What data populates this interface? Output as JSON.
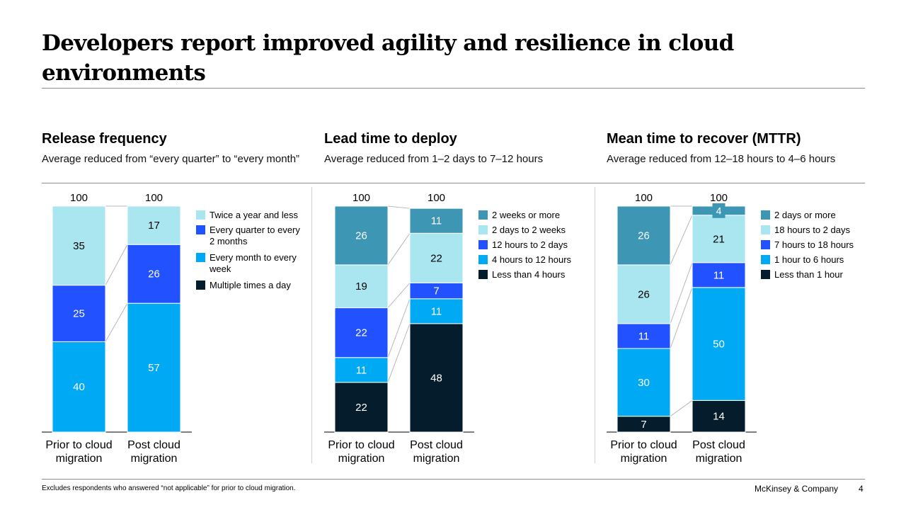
{
  "title": "Developers report improved agility and resilience in cloud environments",
  "footnote": "Excludes respondents who answered “not applicable” for prior to cloud migration.",
  "brand": "McKinsey & Company",
  "page_number": "4",
  "colors": {
    "darkest": "#051c2c",
    "bright_blue": "#00a9f4",
    "royal_blue": "#2251ff",
    "light_cyan": "#aae6f0",
    "teal": "#3c96b4"
  },
  "chart_data": [
    {
      "type": "bar",
      "stacked": true,
      "title": "Release frequency",
      "subtitle": "Average reduced from “every quarter” to “every month”",
      "categories": [
        "Prior to cloud migration",
        "Post cloud migration"
      ],
      "totals": [
        100,
        100
      ],
      "ylim": [
        0,
        100
      ],
      "legend_position": "right",
      "series": [
        {
          "name": "Multiple times a day",
          "color": "#051c2c",
          "values": [
            0,
            0
          ]
        },
        {
          "name": "Every month to every week",
          "color": "#00a9f4",
          "values": [
            40,
            57
          ]
        },
        {
          "name": "Every quarter to every 2 months",
          "color": "#2251ff",
          "values": [
            25,
            26
          ]
        },
        {
          "name": "Twice a year and less",
          "color": "#aae6f0",
          "values": [
            35,
            17
          ]
        }
      ]
    },
    {
      "type": "bar",
      "stacked": true,
      "title": "Lead time to deploy",
      "subtitle": "Average reduced from 1–2 days to 7–12 hours",
      "categories": [
        "Prior to cloud migration",
        "Post cloud migration"
      ],
      "totals": [
        100,
        100
      ],
      "ylim": [
        0,
        100
      ],
      "legend_position": "right",
      "series": [
        {
          "name": "Less than 4 hours",
          "color": "#051c2c",
          "values": [
            22,
            48
          ]
        },
        {
          "name": "4 hours to 12 hours",
          "color": "#00a9f4",
          "values": [
            11,
            11
          ]
        },
        {
          "name": "12 hours to 2 days",
          "color": "#2251ff",
          "values": [
            22,
            7
          ]
        },
        {
          "name": "2 days to 2 weeks",
          "color": "#aae6f0",
          "values": [
            19,
            22
          ]
        },
        {
          "name": "2 weeks or more",
          "color": "#3c96b4",
          "values": [
            26,
            11
          ]
        }
      ]
    },
    {
      "type": "bar",
      "stacked": true,
      "title": "Mean time to recover (MTTR)",
      "subtitle": "Average reduced from 12–18 hours to 4–6 hours",
      "categories": [
        "Prior to cloud migration",
        "Post cloud migration"
      ],
      "totals": [
        100,
        100
      ],
      "ylim": [
        0,
        100
      ],
      "legend_position": "right",
      "series": [
        {
          "name": "Less than 1 hour",
          "color": "#051c2c",
          "values": [
            7,
            14
          ]
        },
        {
          "name": "1 hour to 6 hours",
          "color": "#00a9f4",
          "values": [
            30,
            50
          ]
        },
        {
          "name": "7 hours to 18 hours",
          "color": "#2251ff",
          "values": [
            11,
            11
          ]
        },
        {
          "name": "18 hours to 2 days",
          "color": "#aae6f0",
          "values": [
            26,
            21
          ]
        },
        {
          "name": "2 days or more",
          "color": "#3c96b4",
          "values": [
            26,
            4
          ]
        }
      ]
    }
  ]
}
